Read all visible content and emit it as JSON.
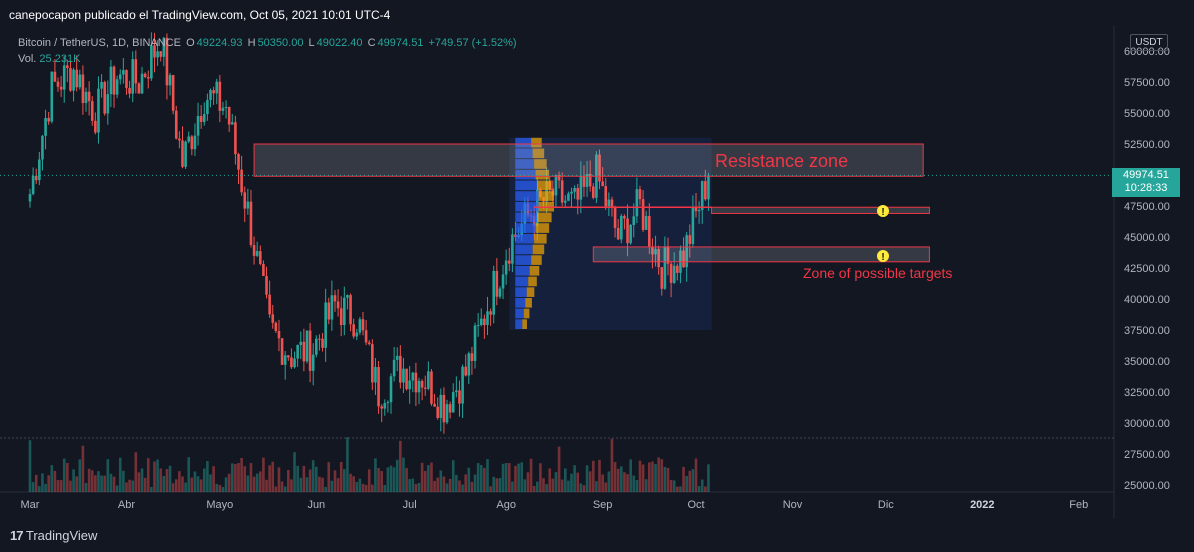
{
  "header": {
    "attribution": "canepocapon publicado el TradingView.com, Oct 05, 2021 10:01 UTC-4"
  },
  "legend": {
    "symbol": "Bitcoin / TetherUS, 1D, BINANCE",
    "open_label": "O",
    "open": "49224.93",
    "high_label": "H",
    "high": "50350.00",
    "low_label": "L",
    "low": "49022.40",
    "close_label": "C",
    "close": "49974.51",
    "change": "+749.57 (+1.52%)",
    "vol_label": "Vol.",
    "vol_value": "25.231K"
  },
  "axis": {
    "currency": "USDT",
    "last_price": "49974.51",
    "countdown": "10:28:33"
  },
  "annotations": {
    "resistance": "Resistance zone",
    "targets": "Zone of possible targets",
    "alert_icon": "!"
  },
  "footer": {
    "brand": "TradingView"
  },
  "colors": {
    "background": "#131722",
    "up": "#26a69a",
    "down": "#ef5350",
    "annotation": "#f23645",
    "zone_fill": "#b2b5be"
  },
  "chart_data": {
    "type": "candlestick",
    "symbol": "BTCUSDT",
    "interval": "1D",
    "exchange": "BINANCE",
    "ylim": [
      25000,
      62500
    ],
    "y_ticks": [
      25000,
      27500,
      30000,
      32500,
      35000,
      37500,
      40000,
      42500,
      45000,
      47500,
      50000,
      52500,
      55000,
      57500,
      60000
    ],
    "y_tick_labels": [
      "25000.00",
      "27500.00",
      "30000.00",
      "32500.00",
      "35000.00",
      "37500.00",
      "40000.00",
      "42500.00",
      "45000.00",
      "47500.00",
      "50000.00",
      "52500.00",
      "55000.00",
      "57500.00",
      "60000.00"
    ],
    "x_ticks": [
      "Mar",
      "Abr",
      "Mayo",
      "Jun",
      "Jul",
      "Ago",
      "Sep",
      "Oct",
      "Nov",
      "Dic",
      "2022",
      "Feb"
    ],
    "close_series_weekly": [
      {
        "date": "2021-03-01",
        "close": 48500
      },
      {
        "date": "2021-03-08",
        "close": 57000
      },
      {
        "date": "2021-03-15",
        "close": 58500
      },
      {
        "date": "2021-03-22",
        "close": 55000
      },
      {
        "date": "2021-03-29",
        "close": 58000
      },
      {
        "date": "2021-04-05",
        "close": 57500
      },
      {
        "date": "2021-04-12",
        "close": 61000
      },
      {
        "date": "2021-04-19",
        "close": 51000
      },
      {
        "date": "2021-04-26",
        "close": 56500
      },
      {
        "date": "2021-05-03",
        "close": 55500
      },
      {
        "date": "2021-05-10",
        "close": 47000
      },
      {
        "date": "2021-05-17",
        "close": 37500
      },
      {
        "date": "2021-05-24",
        "close": 35500
      },
      {
        "date": "2021-05-31",
        "close": 36000
      },
      {
        "date": "2021-06-07",
        "close": 39500
      },
      {
        "date": "2021-06-14",
        "close": 38500
      },
      {
        "date": "2021-06-21",
        "close": 32500
      },
      {
        "date": "2021-06-28",
        "close": 34500
      },
      {
        "date": "2021-07-05",
        "close": 33800
      },
      {
        "date": "2021-07-12",
        "close": 31500
      },
      {
        "date": "2021-07-19",
        "close": 34000
      },
      {
        "date": "2021-07-26",
        "close": 39500
      },
      {
        "date": "2021-08-02",
        "close": 44500
      },
      {
        "date": "2021-08-09",
        "close": 47000
      },
      {
        "date": "2021-08-16",
        "close": 48500
      },
      {
        "date": "2021-08-23",
        "close": 47500
      },
      {
        "date": "2021-08-30",
        "close": 50000
      },
      {
        "date": "2021-09-06",
        "close": 45000
      },
      {
        "date": "2021-09-13",
        "close": 47500
      },
      {
        "date": "2021-09-20",
        "close": 42500
      },
      {
        "date": "2021-09-27",
        "close": 43500
      },
      {
        "date": "2021-10-05",
        "close": 49974.51
      }
    ],
    "zones": [
      {
        "name": "Resistance zone",
        "from": "2021-05-12",
        "to": "2021-12-13",
        "low": 49900,
        "high": 52500
      },
      {
        "name": "Zone of possible targets",
        "from": "2021-08-29",
        "to": "2021-12-15",
        "low": 43000,
        "high": 44200
      },
      {
        "from": "2021-10-06",
        "to": "2021-12-15",
        "low": 46900,
        "high": 47400
      }
    ],
    "horizontal_line": {
      "from": "2021-08-10",
      "to": "2021-10-06",
      "price": 47400
    },
    "volume_profile": {
      "from": "2021-08-02",
      "to": "2021-10-06",
      "low": 37500,
      "high": 53000,
      "poc": 47400
    },
    "volume_last": "25.231K"
  }
}
